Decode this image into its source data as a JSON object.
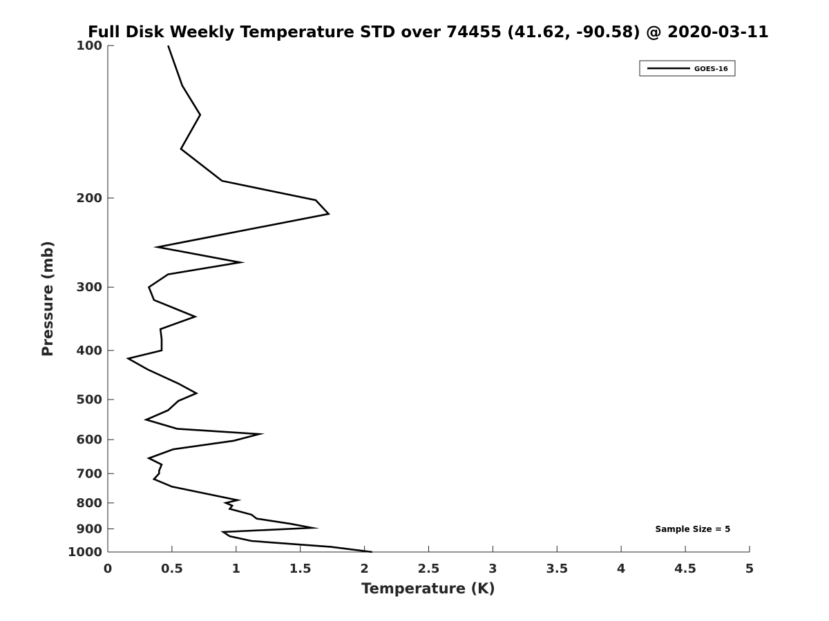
{
  "chart_data": {
    "type": "line",
    "title": "Full Disk Weekly Temperature STD over 74455 (41.62, -90.58) @ 2020-03-11",
    "xlabel": "Temperature (K)",
    "ylabel": "Pressure (mb)",
    "xlim": [
      0,
      5
    ],
    "ylim": [
      100,
      1000
    ],
    "y_scale": "log",
    "y_reversed": true,
    "x_ticks": [
      "0",
      "0.5",
      "1",
      "1.5",
      "2",
      "2.5",
      "3",
      "3.5",
      "4",
      "4.5",
      "5"
    ],
    "y_ticks": [
      "100",
      "200",
      "300",
      "400",
      "500",
      "600",
      "700",
      "800",
      "900",
      "1000"
    ],
    "grid": false,
    "legend": {
      "position": "top-right",
      "entries": [
        "GOES-16"
      ]
    },
    "annotation": "Sample Size = 5",
    "series": [
      {
        "name": "GOES-16",
        "color": "#000000",
        "points": [
          [
            0.47,
            100
          ],
          [
            0.58,
            120
          ],
          [
            0.72,
            137
          ],
          [
            0.57,
            160
          ],
          [
            0.89,
            185
          ],
          [
            1.62,
            202
          ],
          [
            1.72,
            215
          ],
          [
            0.39,
            250
          ],
          [
            1.03,
            268
          ],
          [
            0.47,
            283
          ],
          [
            0.32,
            300
          ],
          [
            0.36,
            318
          ],
          [
            0.68,
            343
          ],
          [
            0.41,
            363
          ],
          [
            0.42,
            380
          ],
          [
            0.42,
            400
          ],
          [
            0.16,
            415
          ],
          [
            0.31,
            436
          ],
          [
            0.55,
            465
          ],
          [
            0.69,
            486
          ],
          [
            0.55,
            503
          ],
          [
            0.47,
            525
          ],
          [
            0.3,
            548
          ],
          [
            0.54,
            571
          ],
          [
            1.18,
            585
          ],
          [
            0.98,
            603
          ],
          [
            0.51,
            627
          ],
          [
            0.32,
            653
          ],
          [
            0.42,
            672
          ],
          [
            0.4,
            691
          ],
          [
            0.4,
            700
          ],
          [
            0.36,
            718
          ],
          [
            0.5,
            743
          ],
          [
            1.01,
            790
          ],
          [
            0.92,
            800
          ],
          [
            0.97,
            810
          ],
          [
            0.95,
            822
          ],
          [
            1.12,
            844
          ],
          [
            1.16,
            859
          ],
          [
            1.43,
            880
          ],
          [
            1.59,
            896
          ],
          [
            0.9,
            913
          ],
          [
            0.95,
            931
          ],
          [
            1.12,
            951
          ],
          [
            1.74,
            977
          ],
          [
            2.06,
            1000
          ]
        ]
      }
    ]
  }
}
